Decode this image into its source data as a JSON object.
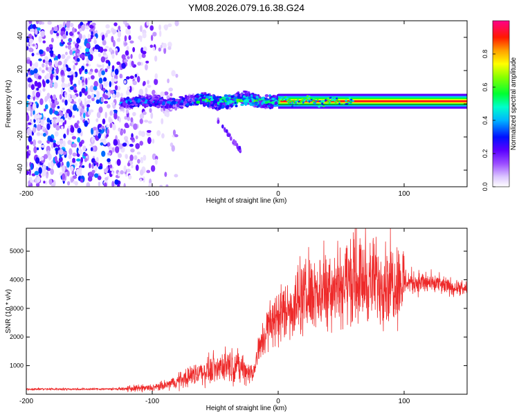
{
  "figure": {
    "title": "YM08.2026.079.16.38.G24"
  },
  "chart_data": [
    {
      "type": "heatmap",
      "name": "spectrogram",
      "xlabel": "Height of straight line (km)",
      "ylabel": "Frequency (Hz)",
      "xlim": [
        -200,
        150
      ],
      "ylim": [
        -50,
        50
      ],
      "xticks": [
        -200,
        -100,
        0,
        100
      ],
      "yticks": [
        -40,
        -20,
        0,
        20,
        40
      ],
      "colorbar": {
        "label": "Normalized spectral amplitude",
        "range": [
          0,
          1
        ],
        "ticks": [
          0.0,
          0.2,
          0.4,
          0.6,
          0.8
        ],
        "tick_labels": [
          "0.0",
          "0.2",
          "0.4",
          "0.6",
          "0.8"
        ],
        "colors": [
          "#ffffff",
          "#cc99ff",
          "#6a00ff",
          "#0000ff",
          "#00ccff",
          "#00ff66",
          "#66ff00",
          "#ffff00",
          "#ff9900",
          "#ff0000",
          "#ff00aa"
        ]
      },
      "regions": [
        {
          "label": "scattered noise",
          "x_range": [
            -200,
            -90
          ],
          "freq_range": [
            -50,
            50
          ],
          "amplitude": 0.15
        },
        {
          "label": "signal onset",
          "x_range": [
            -125,
            -65
          ],
          "freq_center": 1,
          "amplitude": 0.35
        },
        {
          "label": "signal",
          "x_range": [
            -65,
            0
          ],
          "freq_center": 2,
          "amplitude": 0.5
        },
        {
          "label": "carrier",
          "x_range": [
            0,
            150
          ],
          "freq_center": 1.5,
          "amplitude": 0.95
        },
        {
          "label": "side branch",
          "x_range": [
            -48,
            -30
          ],
          "freq_range": [
            -28,
            -10
          ],
          "amplitude": 0.18
        }
      ]
    },
    {
      "type": "line",
      "name": "snr",
      "xlabel": "Height of straight line (km)",
      "ylabel": "SNR (10 * v/v)",
      "xlim": [
        -200,
        150
      ],
      "ylim": [
        0,
        5800
      ],
      "xticks": [
        -200,
        -100,
        0,
        100
      ],
      "yticks": [
        1000,
        2000,
        3000,
        4000,
        5000
      ],
      "color": "#ee2a2a",
      "envelope_x": [
        -200,
        -150,
        -120,
        -100,
        -90,
        -80,
        -70,
        -60,
        -50,
        -40,
        -30,
        -20,
        -15,
        -10,
        -5,
        0,
        10,
        20,
        30,
        40,
        50,
        60,
        70,
        80,
        90,
        100,
        110,
        120,
        130,
        140,
        150
      ],
      "envelope_y": [
        180,
        180,
        190,
        220,
        300,
        450,
        650,
        780,
        900,
        1050,
        950,
        700,
        1600,
        2200,
        2500,
        2750,
        3050,
        3350,
        3550,
        3750,
        3900,
        4000,
        3950,
        3950,
        3950,
        3950,
        3920,
        3870,
        3800,
        3720,
        3650
      ],
      "peak_value": 5800
    }
  ]
}
